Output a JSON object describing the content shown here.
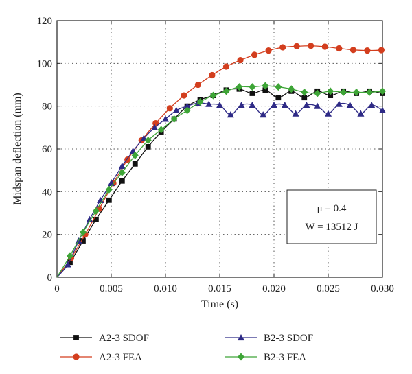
{
  "chart_data": {
    "type": "line",
    "xlabel": "Time (s)",
    "ylabel": "Midspan deflection (mm)",
    "xlim": [
      0,
      0.03
    ],
    "ylim": [
      0,
      120
    ],
    "xticks": [
      0,
      0.005,
      0.01,
      0.015,
      0.02,
      0.025,
      0.03
    ],
    "xtick_labels": [
      "0",
      "0.005",
      "0.010",
      "0.015",
      "0.020",
      "0.025",
      "0.030"
    ],
    "yticks": [
      0,
      20,
      40,
      60,
      80,
      100,
      120
    ],
    "ytick_labels": [
      "0",
      "20",
      "40",
      "60",
      "80",
      "100",
      "120"
    ],
    "grid": true,
    "legend_position": "bottom",
    "annotation": {
      "lines": [
        "μ = 0.4",
        "W = 13512 J"
      ]
    },
    "series": [
      {
        "name": "A2-3 SDOF",
        "color": "#111111",
        "marker": "square",
        "x": [
          0,
          0.0012,
          0.0024,
          0.0036,
          0.0048,
          0.006,
          0.0072,
          0.0084,
          0.0096,
          0.0108,
          0.012,
          0.0132,
          0.0144,
          0.0156,
          0.0168,
          0.018,
          0.0192,
          0.0204,
          0.0216,
          0.0228,
          0.024,
          0.0252,
          0.0264,
          0.0276,
          0.0288,
          0.03
        ],
        "y": [
          0,
          7,
          17,
          27,
          36,
          45,
          53,
          61,
          68,
          74,
          80,
          83,
          85,
          87.5,
          88,
          86,
          87.5,
          84,
          87,
          84,
          87,
          85,
          87,
          86,
          87,
          86
        ]
      },
      {
        "name": "A2-3 FEA",
        "color": "#d33e1e",
        "marker": "circle",
        "x": [
          0,
          0.0013,
          0.0026,
          0.0039,
          0.0052,
          0.0065,
          0.0078,
          0.0091,
          0.0104,
          0.0117,
          0.013,
          0.0143,
          0.0156,
          0.0169,
          0.0182,
          0.0195,
          0.0208,
          0.0221,
          0.0234,
          0.0247,
          0.026,
          0.0273,
          0.0286,
          0.0299
        ],
        "y": [
          0,
          9,
          20,
          32,
          44,
          55,
          64,
          72,
          79,
          85,
          90,
          94.5,
          98.5,
          101.5,
          104,
          106,
          107.5,
          108,
          108.2,
          107.8,
          107,
          106.3,
          106,
          106.2
        ]
      },
      {
        "name": "B2-3 SDOF",
        "color": "#2e2a86",
        "marker": "triangle",
        "x": [
          0,
          0.001,
          0.002,
          0.003,
          0.004,
          0.005,
          0.006,
          0.007,
          0.008,
          0.009,
          0.01,
          0.011,
          0.012,
          0.013,
          0.014,
          0.015,
          0.016,
          0.017,
          0.018,
          0.019,
          0.02,
          0.021,
          0.022,
          0.023,
          0.024,
          0.025,
          0.026,
          0.027,
          0.028,
          0.029,
          0.03
        ],
        "y": [
          0,
          6,
          17,
          27,
          36,
          44,
          52,
          59,
          65,
          70,
          74,
          78,
          80,
          81.5,
          81,
          80.5,
          76,
          80.5,
          80.5,
          76,
          80.5,
          80.5,
          76.5,
          80.5,
          80,
          76.5,
          81,
          80.5,
          76.5,
          80.5,
          78
        ]
      },
      {
        "name": "B2-3 FEA",
        "color": "#3ea537",
        "marker": "diamond",
        "x": [
          0,
          0.0012,
          0.0024,
          0.0036,
          0.0048,
          0.006,
          0.0072,
          0.0084,
          0.0096,
          0.0108,
          0.012,
          0.0132,
          0.0144,
          0.0156,
          0.0168,
          0.018,
          0.0192,
          0.0204,
          0.0216,
          0.0228,
          0.024,
          0.0252,
          0.0264,
          0.0276,
          0.0288,
          0.03
        ],
        "y": [
          0,
          10,
          21,
          31,
          41,
          49,
          57,
          64,
          69,
          74,
          78,
          82,
          85,
          87,
          89,
          89,
          89.5,
          89,
          88,
          86.5,
          86,
          87,
          86.5,
          86.5,
          86.5,
          87
        ]
      }
    ]
  }
}
